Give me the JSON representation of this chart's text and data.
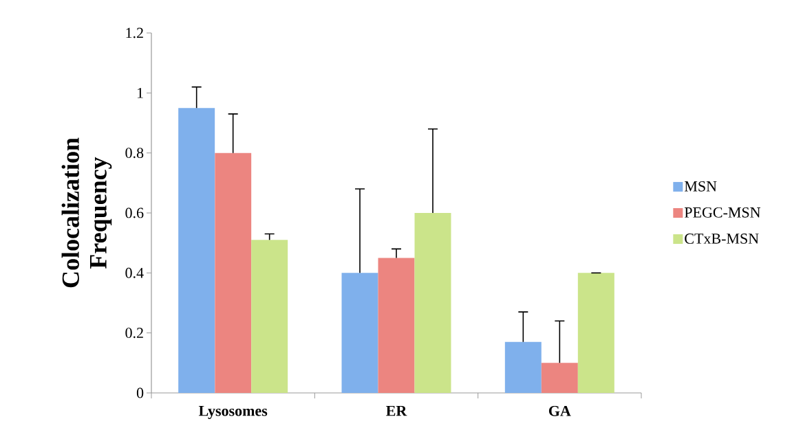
{
  "chart_data": {
    "type": "bar",
    "ylabel": "Colocalization Frequency",
    "categories": [
      "Lysosomes",
      "ER",
      "GA"
    ],
    "series": [
      {
        "name": "MSN",
        "color": "#7fb0ec",
        "values": [
          0.95,
          0.4,
          0.17
        ],
        "errors": [
          [
            0.95,
            1.02
          ],
          [
            0.4,
            0.68
          ],
          [
            0.17,
            0.27
          ]
        ]
      },
      {
        "name": "PEGC-MSN",
        "color": "#ec8580",
        "values": [
          0.8,
          0.45,
          0.1
        ],
        "errors": [
          [
            0.8,
            0.93
          ],
          [
            0.45,
            0.48
          ],
          [
            0.1,
            0.24
          ]
        ]
      },
      {
        "name": "CTxB-MSN",
        "color": "#cbe48a",
        "values": [
          0.51,
          0.6,
          0.4
        ],
        "errors": [
          [
            0.51,
            0.53
          ],
          [
            0.6,
            0.88
          ],
          [
            0.4,
            0.4
          ]
        ]
      }
    ],
    "ylim": [
      0,
      1.2
    ],
    "yticks": [
      0,
      0.2,
      0.4,
      0.6,
      0.8,
      1,
      1.2
    ],
    "grid": false,
    "legend": "right"
  }
}
